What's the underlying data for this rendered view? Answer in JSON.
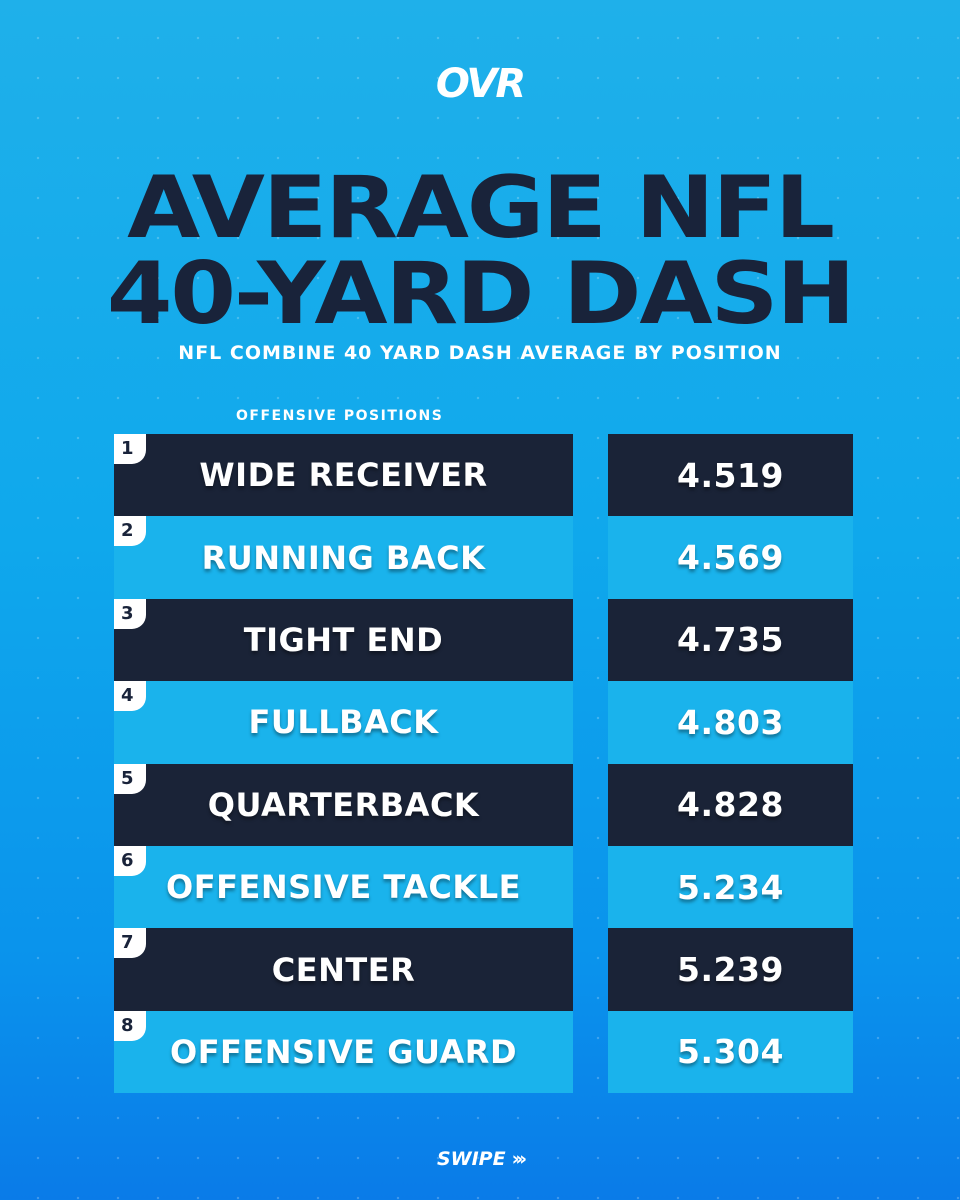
{
  "logo": "OVR",
  "title_line1": "AVERAGE NFL",
  "title_line2": "40-YARD DASH",
  "subtitle": "NFL COMBINE 40 YARD DASH AVERAGE BY POSITION",
  "section_label": "OFFENSIVE POSITIONS",
  "rows": [
    {
      "rank": "1",
      "position": "WIDE RECEIVER",
      "time": "4.519"
    },
    {
      "rank": "2",
      "position": "RUNNING BACK",
      "time": "4.569"
    },
    {
      "rank": "3",
      "position": "TIGHT END",
      "time": "4.735"
    },
    {
      "rank": "4",
      "position": "FULLBACK",
      "time": "4.803"
    },
    {
      "rank": "5",
      "position": "QUARTERBACK",
      "time": "4.828"
    },
    {
      "rank": "6",
      "position": "OFFENSIVE TACKLE",
      "time": "5.234"
    },
    {
      "rank": "7",
      "position": "CENTER",
      "time": "5.239"
    },
    {
      "rank": "8",
      "position": "OFFENSIVE GUARD",
      "time": "5.304"
    }
  ],
  "swipe": "SWIPE",
  "swipe_icon": "triple-chevron-right-icon",
  "colors": {
    "dark_row": "#1a2337",
    "light_row": "#1ab3ec",
    "title": "#19233a"
  }
}
